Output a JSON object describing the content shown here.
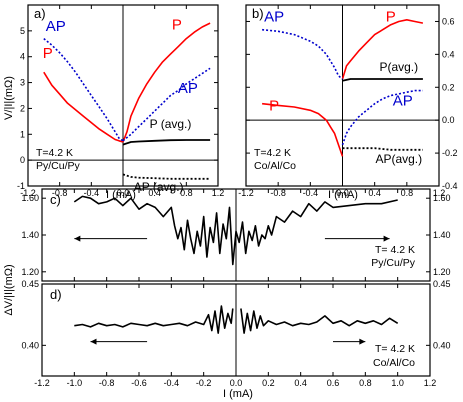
{
  "colors": {
    "p_series": "#ff0000",
    "ap_series": "#0000cc",
    "avg_series": "#000000"
  },
  "chart_data": [
    {
      "panel": "a)",
      "type": "line",
      "annotation": [
        "T=4.2 K",
        "Py/Cu/Py"
      ],
      "ylabel": "V/|I|(mΩ)",
      "xlim": [
        -1.2,
        1.2
      ],
      "ylim": [
        -1,
        6
      ],
      "xticks": [
        -1.2,
        -0.8,
        -0.4,
        0.0,
        0.4,
        0.8,
        1.2
      ],
      "xticklabels": [
        "-1.2",
        "-0.8",
        "-0.4",
        "0.0",
        "0.4",
        "0.8",
        "1.2"
      ],
      "yticks": [
        -1,
        0,
        1,
        2,
        3,
        4,
        5
      ],
      "yticklabels": [
        "-1",
        "0",
        "1",
        "2",
        "3",
        "4",
        "5"
      ],
      "series": [
        {
          "name": "P",
          "style": "solid",
          "color": "#ff0000",
          "label_at": [
            -0.95,
            3.95
          ],
          "x": [
            -1.0,
            -0.9,
            -0.8,
            -0.7,
            -0.6,
            -0.5,
            -0.4,
            -0.3,
            -0.2,
            -0.1,
            -0.05,
            0.0
          ],
          "y": [
            3.4,
            2.9,
            2.55,
            2.2,
            1.95,
            1.7,
            1.45,
            1.2,
            1.0,
            0.8,
            0.75,
            0.7
          ]
        },
        {
          "name": "P",
          "style": "solid",
          "color": "#ff0000",
          "label_at": [
            0.68,
            5.05
          ],
          "x": [
            0.0,
            0.05,
            0.1,
            0.2,
            0.3,
            0.4,
            0.5,
            0.6,
            0.7,
            0.8,
            0.9,
            1.0,
            1.1
          ],
          "y": [
            0.7,
            1.1,
            1.7,
            2.4,
            2.95,
            3.4,
            3.8,
            4.1,
            4.4,
            4.7,
            4.95,
            5.15,
            5.3
          ]
        },
        {
          "name": "AP",
          "style": "dotted",
          "color": "#0000cc",
          "label_at": [
            -0.85,
            5.0
          ],
          "x": [
            -1.0,
            -0.9,
            -0.8,
            -0.7,
            -0.6,
            -0.5,
            -0.4,
            -0.3,
            -0.2,
            -0.1,
            -0.05,
            0.0
          ],
          "y": [
            4.7,
            4.45,
            4.15,
            3.8,
            3.4,
            2.95,
            2.5,
            2.05,
            1.6,
            1.1,
            0.85,
            0.75
          ]
        },
        {
          "name": "AP",
          "style": "dotted",
          "color": "#0000cc",
          "label_at": [
            0.82,
            2.6
          ],
          "x": [
            0.0,
            0.1,
            0.2,
            0.3,
            0.4,
            0.5,
            0.6,
            0.7,
            0.8,
            0.9,
            1.0,
            1.1
          ],
          "y": [
            0.75,
            1.0,
            1.3,
            1.6,
            1.9,
            2.2,
            2.5,
            2.7,
            2.95,
            3.15,
            3.35,
            3.55
          ]
        },
        {
          "name": "P (avg.)",
          "style": "solid",
          "color": "#000000",
          "label_at": [
            0.6,
            1.25
          ],
          "x": [
            0.0,
            0.1,
            0.2,
            0.4,
            0.6,
            0.8,
            1.0,
            1.1
          ],
          "y": [
            0.6,
            0.7,
            0.72,
            0.75,
            0.77,
            0.78,
            0.78,
            0.78
          ]
        },
        {
          "name": "AP (avg.)",
          "style": "dotted",
          "color": "#000000",
          "label_at": [
            0.45,
            -1.2
          ],
          "x": [
            0.0,
            0.1,
            0.2,
            0.4,
            0.6,
            0.8,
            1.0,
            1.1
          ],
          "y": [
            -0.55,
            -0.65,
            -0.68,
            -0.7,
            -0.72,
            -0.72,
            -0.72,
            -0.72
          ]
        }
      ]
    },
    {
      "panel": "b)",
      "type": "line",
      "annotation": [
        "T=4.2 K",
        "Co/Al/Co"
      ],
      "xlim": [
        -1.2,
        1.2
      ],
      "ylim": [
        -0.4,
        0.7
      ],
      "xticks": [
        -1.2,
        -0.8,
        -0.4,
        0.0,
        0.4,
        0.8,
        1.2
      ],
      "xticklabels": [
        "-1.2",
        "-0.8",
        "-0.4",
        "0.0",
        "0.4",
        "0.8",
        "1.2"
      ],
      "yticks": [
        -0.4,
        -0.2,
        0.0,
        0.2,
        0.4,
        0.6
      ],
      "yticklabels": [
        "-0.4",
        "-0.2",
        "0.0",
        "0.2",
        "0.4",
        "0.6"
      ],
      "series": [
        {
          "name": "P",
          "style": "solid",
          "color": "#ff0000",
          "label_at": [
            -0.85,
            0.06
          ],
          "x": [
            -1.0,
            -0.8,
            -0.6,
            -0.4,
            -0.3,
            -0.2,
            -0.15,
            -0.1,
            -0.05,
            0.0
          ],
          "y": [
            0.1,
            0.09,
            0.08,
            0.06,
            0.04,
            0.0,
            -0.04,
            -0.08,
            -0.15,
            -0.22
          ]
        },
        {
          "name": "P",
          "style": "solid",
          "color": "#ff0000",
          "label_at": [
            0.6,
            0.6
          ],
          "x": [
            0.0,
            0.05,
            0.1,
            0.2,
            0.3,
            0.4,
            0.5,
            0.6,
            0.7,
            0.8,
            0.9,
            1.0
          ],
          "y": [
            0.25,
            0.33,
            0.36,
            0.42,
            0.47,
            0.52,
            0.55,
            0.58,
            0.6,
            0.61,
            0.6,
            0.59
          ]
        },
        {
          "name": "AP",
          "style": "dotted",
          "color": "#0000cc",
          "label_at": [
            -0.85,
            0.6
          ],
          "x": [
            -1.0,
            -0.8,
            -0.6,
            -0.4,
            -0.3,
            -0.2,
            -0.15,
            -0.1,
            -0.05,
            0.0
          ],
          "y": [
            0.55,
            0.54,
            0.52,
            0.48,
            0.45,
            0.4,
            0.36,
            0.32,
            0.27,
            0.25
          ]
        },
        {
          "name": "AP",
          "style": "dotted",
          "color": "#0000cc",
          "label_at": [
            0.75,
            0.09
          ],
          "x": [
            0.0,
            0.05,
            0.1,
            0.2,
            0.3,
            0.4,
            0.5,
            0.6,
            0.7,
            0.8,
            0.9,
            1.0
          ],
          "y": [
            -0.15,
            -0.08,
            -0.04,
            0.02,
            0.06,
            0.1,
            0.13,
            0.15,
            0.16,
            0.17,
            0.18,
            0.18
          ]
        },
        {
          "name": "P(avg.)",
          "style": "solid",
          "color": "#000000",
          "label_at": [
            0.7,
            0.3
          ],
          "x": [
            0.0,
            0.1,
            0.2,
            0.4,
            0.6,
            0.8,
            1.0
          ],
          "y": [
            0.24,
            0.25,
            0.25,
            0.25,
            0.25,
            0.25,
            0.25
          ]
        },
        {
          "name": "AP(avg.)",
          "style": "dotted",
          "color": "#000000",
          "label_at": [
            0.7,
            -0.26
          ],
          "x": [
            0.0,
            0.1,
            0.2,
            0.4,
            0.6,
            0.8,
            1.0
          ],
          "y": [
            -0.17,
            -0.17,
            -0.17,
            -0.17,
            -0.18,
            -0.18,
            -0.18
          ]
        }
      ]
    },
    {
      "panel": "c)",
      "type": "line",
      "annotation": [
        "T= 4.2 K",
        "Py/Cu/Py"
      ],
      "xlim": [
        -1.2,
        1.2
      ],
      "ylim": [
        1.15,
        1.65
      ],
      "xticks": [
        -1.2,
        -1.0,
        -0.8,
        -0.6,
        -0.4,
        -0.2,
        0.0,
        0.2,
        0.4,
        0.6,
        0.8,
        1.0,
        1.2
      ],
      "yticks": [
        1.2,
        1.4,
        1.6
      ],
      "yticklabels": [
        "1.20",
        "1.40",
        "1.60"
      ],
      "series": [
        {
          "name": "",
          "style": "solid",
          "color": "#000000",
          "x": [
            -1.0,
            -0.95,
            -0.9,
            -0.85,
            -0.8,
            -0.75,
            -0.7,
            -0.65,
            -0.6,
            -0.55,
            -0.5,
            -0.45,
            -0.4,
            -0.38,
            -0.36,
            -0.34,
            -0.32,
            -0.3,
            -0.28,
            -0.26,
            -0.24,
            -0.22,
            -0.2,
            -0.18,
            -0.16,
            -0.14,
            -0.12,
            -0.1,
            -0.08,
            -0.06,
            -0.04,
            -0.02,
            0.0,
            0.02,
            0.04,
            0.06,
            0.08,
            0.1,
            0.12,
            0.14,
            0.16,
            0.18,
            0.2,
            0.22,
            0.25,
            0.3,
            0.35,
            0.4,
            0.45,
            0.5,
            0.55,
            0.6,
            0.7,
            0.8,
            0.9,
            1.0
          ],
          "y": [
            1.58,
            1.61,
            1.6,
            1.57,
            1.58,
            1.6,
            1.56,
            1.6,
            1.54,
            1.57,
            1.55,
            1.5,
            1.55,
            1.45,
            1.38,
            1.44,
            1.32,
            1.48,
            1.38,
            1.3,
            1.42,
            1.34,
            1.5,
            1.28,
            1.44,
            1.36,
            1.52,
            1.3,
            1.46,
            1.38,
            1.55,
            1.24,
            1.42,
            1.36,
            1.47,
            1.3,
            1.42,
            1.37,
            1.45,
            1.34,
            1.4,
            1.38,
            1.45,
            1.4,
            1.5,
            1.47,
            1.53,
            1.5,
            1.57,
            1.53,
            1.58,
            1.55,
            1.56,
            1.57,
            1.57,
            1.59
          ]
        }
      ],
      "arrows": [
        {
          "from": -0.55,
          "to": -1.0,
          "y": 1.38
        },
        {
          "from": 0.55,
          "to": 0.95,
          "y": 1.38
        }
      ]
    },
    {
      "panel": "d)",
      "type": "line",
      "annotation": [
        "T= 4.2 K",
        "Co/Al/Co"
      ],
      "xlabel": "I (mA)",
      "xlim": [
        -1.2,
        1.2
      ],
      "ylim": [
        0.375,
        0.45
      ],
      "xticks": [
        -1.2,
        -1.0,
        -0.8,
        -0.6,
        -0.4,
        -0.2,
        0.0,
        0.2,
        0.4,
        0.6,
        0.8,
        1.0,
        1.2
      ],
      "xticklabels": [
        "-1.2",
        "-1.0",
        "-0.8",
        "-0.6",
        "-0.4",
        "-0.2",
        "0.0",
        "0.2",
        "0.4",
        "0.6",
        "0.8",
        "1.0",
        "1.2"
      ],
      "yticks": [
        0.4,
        0.45
      ],
      "yticklabels": [
        "0.40",
        "0.45"
      ],
      "series": [
        {
          "name": "",
          "style": "solid",
          "color": "#000000",
          "x": [
            -1.0,
            -0.95,
            -0.9,
            -0.85,
            -0.8,
            -0.75,
            -0.7,
            -0.65,
            -0.6,
            -0.55,
            -0.5,
            -0.45,
            -0.4,
            -0.35,
            -0.3,
            -0.25,
            -0.2,
            -0.17,
            -0.15,
            -0.13,
            -0.11,
            -0.09,
            -0.07,
            -0.05,
            -0.03,
            -0.02
          ],
          "y": [
            0.416,
            0.417,
            0.415,
            0.418,
            0.416,
            0.417,
            0.415,
            0.418,
            0.417,
            0.416,
            0.418,
            0.416,
            0.417,
            0.418,
            0.416,
            0.419,
            0.417,
            0.425,
            0.412,
            0.428,
            0.41,
            0.432,
            0.414,
            0.426,
            0.418,
            0.43
          ]
        },
        {
          "name": "",
          "style": "solid",
          "color": "#000000",
          "x": [
            0.03,
            0.05,
            0.07,
            0.09,
            0.11,
            0.13,
            0.15,
            0.17,
            0.2,
            0.25,
            0.3,
            0.35,
            0.4,
            0.45,
            0.5,
            0.55,
            0.6,
            0.65,
            0.7,
            0.75,
            0.8,
            0.85,
            0.9,
            0.95,
            1.0
          ],
          "y": [
            0.43,
            0.41,
            0.426,
            0.412,
            0.428,
            0.414,
            0.424,
            0.416,
            0.42,
            0.417,
            0.419,
            0.416,
            0.418,
            0.417,
            0.419,
            0.424,
            0.418,
            0.42,
            0.416,
            0.42,
            0.418,
            0.42,
            0.417,
            0.422,
            0.418
          ]
        }
      ],
      "arrows": [
        {
          "from": -0.55,
          "to": -0.9,
          "y": 0.403
        },
        {
          "from": 0.6,
          "to": 0.8,
          "y": 0.403
        }
      ]
    }
  ],
  "text": {
    "a_xlabel": "I (mA)",
    "b_xlabel": "I (mA)",
    "cd_ylabel": "ΔV/|I|(mΩ)"
  }
}
